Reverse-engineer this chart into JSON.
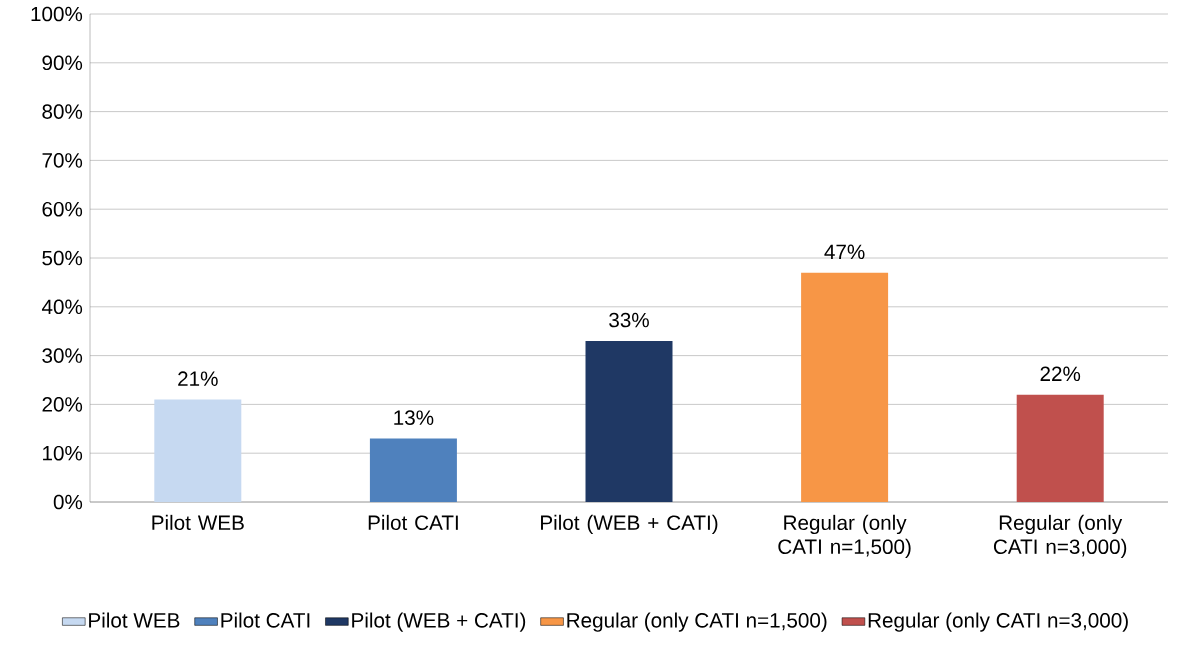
{
  "chart_data": {
    "type": "bar",
    "categories": [
      "Pilot WEB",
      "Pilot CATI",
      "Pilot (WEB + CATI)",
      "Regular  (only CATI n=1,500)",
      "Regular  (only CATI n=3,000)"
    ],
    "series": [
      {
        "name": "Pilot WEB",
        "color": "#c6d9f1",
        "values": [
          21,
          null,
          null,
          null,
          null
        ],
        "value_labels": [
          "21%",
          null,
          null,
          null,
          null
        ]
      },
      {
        "name": "Pilot CATI",
        "color": "#4f81bd",
        "values": [
          null,
          13,
          null,
          null,
          null
        ],
        "value_labels": [
          null,
          "13%",
          null,
          null,
          null
        ]
      },
      {
        "name": "Pilot (WEB + CATI)",
        "color": "#1f3864",
        "values": [
          null,
          null,
          33,
          null,
          null
        ],
        "value_labels": [
          null,
          null,
          "33%",
          null,
          null
        ]
      },
      {
        "name": "Regular  (only CATI n=1,500)",
        "color": "#f79646",
        "values": [
          null,
          null,
          null,
          47,
          null
        ],
        "value_labels": [
          null,
          null,
          null,
          "47%",
          null
        ]
      },
      {
        "name": "Regular  (only CATI n=3,000)",
        "color": "#c0504d",
        "values": [
          null,
          null,
          null,
          null,
          22
        ],
        "value_labels": [
          null,
          null,
          null,
          null,
          "22%"
        ]
      }
    ],
    "ylim": [
      0,
      100
    ],
    "yticks": [
      {
        "value": 0,
        "label": "0%"
      },
      {
        "value": 10,
        "label": "10%"
      },
      {
        "value": 20,
        "label": "20%"
      },
      {
        "value": 30,
        "label": "30%"
      },
      {
        "value": 40,
        "label": "40%"
      },
      {
        "value": 50,
        "label": "50%"
      },
      {
        "value": 60,
        "label": "60%"
      },
      {
        "value": 70,
        "label": "70%"
      },
      {
        "value": 80,
        "label": "80%"
      },
      {
        "value": 90,
        "label": "90%"
      },
      {
        "value": 100,
        "label": "100%"
      }
    ],
    "grid": "y",
    "legend": "bottom"
  }
}
